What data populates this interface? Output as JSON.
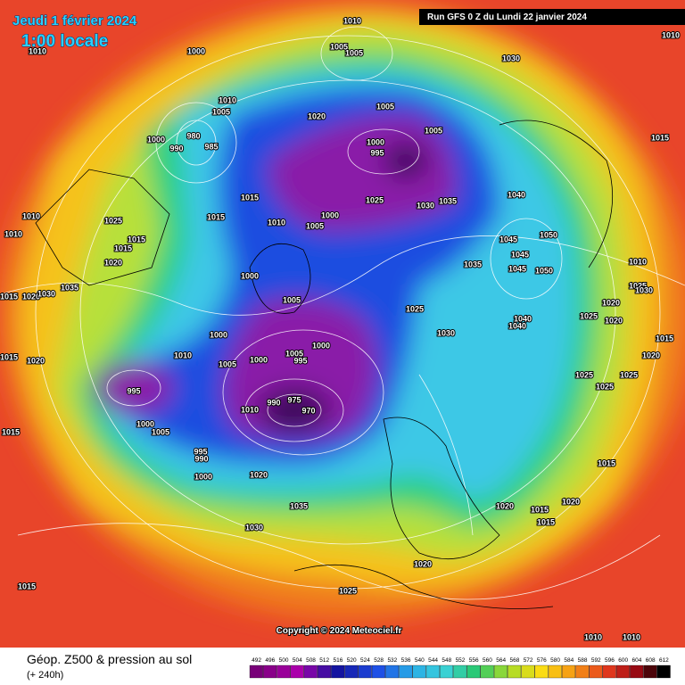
{
  "header": {
    "date": "Jeudi 1 février 2024",
    "time": "1:00 locale",
    "run": "Run GFS 0 Z du Lundi 22 janvier 2024"
  },
  "footer": {
    "title": "Géop. Z500 & pression au sol",
    "subtitle": "(+ 240h)",
    "copyright": "Copyright © 2024 Meteociel.fr"
  },
  "legend": {
    "levels": [
      "492",
      "496",
      "500",
      "504",
      "508",
      "512",
      "516",
      "520",
      "524",
      "528",
      "532",
      "536",
      "540",
      "544",
      "548",
      "552",
      "556",
      "560",
      "564",
      "568",
      "572",
      "576",
      "580",
      "584",
      "588",
      "592",
      "596",
      "600",
      "604",
      "608",
      "612"
    ]
  },
  "isobar_labels": [
    "1010",
    "1010",
    "1000",
    "1005",
    "1005",
    "1030",
    "1010",
    "1010",
    "1005",
    "1020",
    "1005",
    "1005",
    "1000",
    "980",
    "985",
    "990",
    "1000",
    "995",
    "1015",
    "1015",
    "1025",
    "1030",
    "1035",
    "1040",
    "1015",
    "1000",
    "1005",
    "1010",
    "1010",
    "1025",
    "1010",
    "1015",
    "1015",
    "1045",
    "1050",
    "1045",
    "1045",
    "1050",
    "1035",
    "1020",
    "1010",
    "1000",
    "1005",
    "1025",
    "1025",
    "1030",
    "1020",
    "1020",
    "1025",
    "1040",
    "1040",
    "1030",
    "1000",
    "1000",
    "1010",
    "1005",
    "995",
    "1000",
    "1005",
    "1015",
    "1020",
    "1020",
    "1015",
    "1025",
    "1025",
    "1025",
    "995",
    "975",
    "970",
    "990",
    "1010",
    "1000",
    "1005",
    "1015",
    "995",
    "990",
    "1015",
    "1000",
    "1020",
    "1020",
    "1020",
    "1035",
    "1015",
    "1015",
    "1030",
    "1020",
    "1015",
    "1025",
    "1010",
    "1010",
    "1015",
    "1020",
    "1030",
    "1035"
  ]
}
